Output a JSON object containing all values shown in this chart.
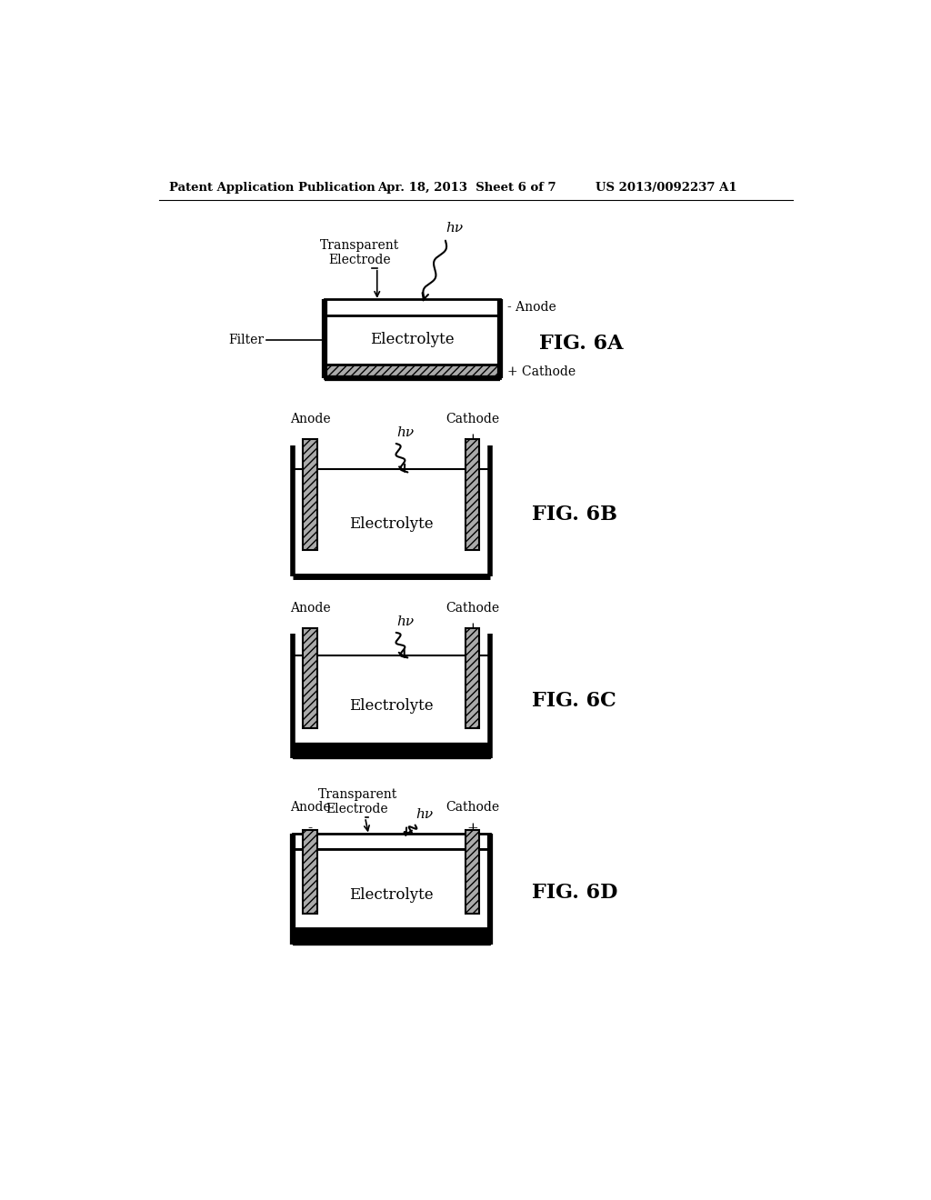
{
  "bg_color": "#ffffff",
  "header_left": "Patent Application Publication",
  "header_mid": "Apr. 18, 2013  Sheet 6 of 7",
  "header_right": "US 2013/0092237 A1",
  "fig_labels": [
    "FIG. 6A",
    "FIG. 6B",
    "FIG. 6C",
    "FIG. 6D"
  ],
  "electrolyte_text": "Electrolyte",
  "transparent_electrode_text": "Transparent\nElectrode",
  "filter_text": "Filter",
  "anode_text": "Anode",
  "cathode_text": "Cathode",
  "anode_sign": "-",
  "cathode_sign": "+",
  "anode_label": "- Anode",
  "cathode_label": "+ Cathode",
  "hv_text": "hν"
}
